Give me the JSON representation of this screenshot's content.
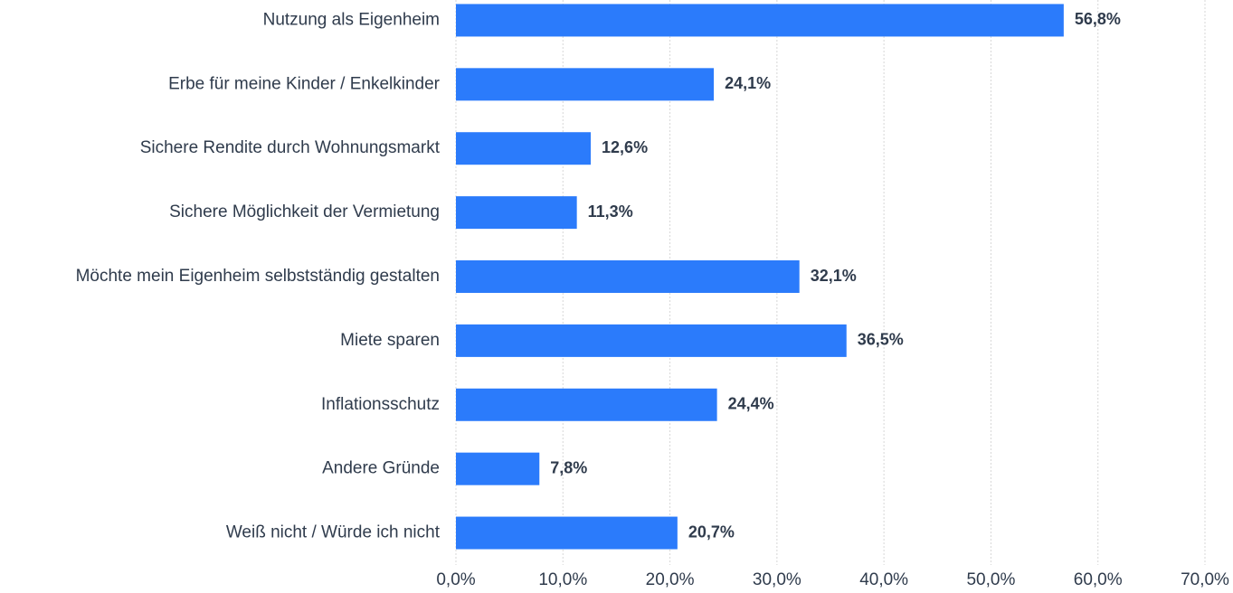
{
  "chart_data": {
    "type": "bar",
    "orientation": "horizontal",
    "categories": [
      "Nutzung als Eigenheim",
      "Erbe für meine Kinder / Enkelkinder",
      "Sichere Rendite durch Wohnungsmarkt",
      "Sichere Möglichkeit der Vermietung",
      "Möchte mein Eigenheim selbstständig gestalten",
      "Miete sparen",
      "Inflationsschutz",
      "Andere Gründe",
      "Weiß nicht / Würde ich nicht"
    ],
    "values": [
      56.8,
      24.1,
      12.6,
      11.3,
      32.1,
      36.5,
      24.4,
      7.8,
      20.7
    ],
    "value_labels": [
      "56,8%",
      "24,1%",
      "12,6%",
      "11,3%",
      "32,1%",
      "36,5%",
      "24,4%",
      "7,8%",
      "20,7%"
    ],
    "color": "#2b7bfb",
    "xlim": [
      0,
      70
    ],
    "xticks": [
      {
        "value": 0,
        "label": "0,0%"
      },
      {
        "value": 10,
        "label": "10,0%"
      },
      {
        "value": 20,
        "label": "20,0%"
      },
      {
        "value": 30,
        "label": "30,0%"
      },
      {
        "value": 40,
        "label": "40,0%"
      },
      {
        "value": 50,
        "label": "50,0%"
      },
      {
        "value": 60,
        "label": "60,0%"
      },
      {
        "value": 70,
        "label": "70,0%"
      }
    ],
    "grid": true
  }
}
